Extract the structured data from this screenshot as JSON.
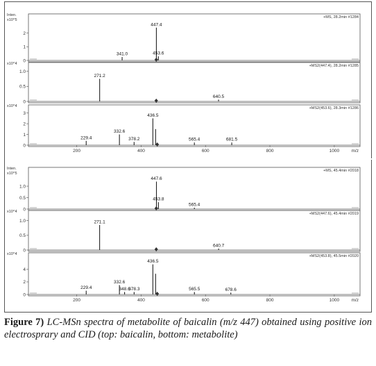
{
  "chart_data": [
    {
      "type": "bar",
      "group": "top",
      "axis_units_label": "Inten.",
      "scale_label": "x10^5",
      "header": "+MS, 28.2min #1284",
      "ylim": [
        0,
        3.2
      ],
      "yticks": [
        0,
        1,
        2
      ],
      "peaks": [
        {
          "x": 341.0,
          "y": 0.25,
          "label": "341.0"
        },
        {
          "x": 447.4,
          "y": 2.4,
          "label": "447.4"
        },
        {
          "x": 453.6,
          "y": 0.3,
          "label": "453.6"
        }
      ],
      "precursor_marker": 447
    },
    {
      "type": "bar",
      "group": "top",
      "scale_label": "x10^4",
      "header": "+MS2(447.4), 28.2min #1285",
      "ylim": [
        0,
        1.2
      ],
      "yticks": [
        0.0,
        0.5,
        1.0
      ],
      "ytick_labels": [
        "0",
        "0.5",
        "1.0"
      ],
      "peaks": [
        {
          "x": 271.2,
          "y": 0.75,
          "label": "271.2"
        },
        {
          "x": 640.5,
          "y": 0.06,
          "label": "640.5"
        }
      ],
      "precursor_marker": 447
    },
    {
      "type": "bar",
      "group": "top",
      "scale_label": "x10^4",
      "header": "+MS2(453.6), 28.3min #1286",
      "ylim": [
        0,
        3.5
      ],
      "yticks": [
        0,
        1,
        2,
        3
      ],
      "peaks": [
        {
          "x": 229.4,
          "y": 0.4,
          "label": "229.4"
        },
        {
          "x": 332.6,
          "y": 1.0,
          "label": "332.6"
        },
        {
          "x": 378.2,
          "y": 0.3,
          "label": "378.2"
        },
        {
          "x": 436.5,
          "y": 2.5,
          "label": "436.5"
        },
        {
          "x": 445.0,
          "y": 1.5,
          "label": ""
        },
        {
          "x": 565.4,
          "y": 0.25,
          "label": "565.4"
        },
        {
          "x": 681.5,
          "y": 0.25,
          "label": "681.5"
        }
      ],
      "precursor_marker": 450
    },
    {
      "type": "bar",
      "group": "bottom",
      "axis_units_label": "Inten.",
      "scale_label": "x10^5",
      "header": "+MS, 45.4min #2018",
      "ylim": [
        0,
        1.7
      ],
      "yticks": [
        0,
        0.5,
        1.0
      ],
      "ytick_labels": [
        "0",
        "0.5",
        "1.0"
      ],
      "peaks": [
        {
          "x": 447.6,
          "y": 1.2,
          "label": "447.6"
        },
        {
          "x": 453.8,
          "y": 0.3,
          "label": "453.8"
        },
        {
          "x": 565.4,
          "y": 0.06,
          "label": "565.4"
        }
      ],
      "precursor_marker": 447
    },
    {
      "type": "bar",
      "group": "bottom",
      "scale_label": "x10^4",
      "header": "+MS2(447.6), 45.4min #2019",
      "ylim": [
        0,
        1.25
      ],
      "yticks": [
        0.0,
        0.5,
        1.0
      ],
      "ytick_labels": [
        "0",
        "0.5",
        "1.0"
      ],
      "peaks": [
        {
          "x": 271.1,
          "y": 0.85,
          "label": "271.1"
        },
        {
          "x": 640.7,
          "y": 0.05,
          "label": "640.7"
        }
      ],
      "precursor_marker": 447
    },
    {
      "type": "bar",
      "group": "bottom",
      "scale_label": "x10^4",
      "header": "+MS2(453.8), 45.5min #2020",
      "ylim": [
        0,
        6.2
      ],
      "yticks": [
        0,
        2,
        4
      ],
      "peaks": [
        {
          "x": 229.4,
          "y": 0.6,
          "label": "229.4"
        },
        {
          "x": 332.6,
          "y": 1.5,
          "label": "332.6"
        },
        {
          "x": 348.6,
          "y": 0.4,
          "label": "348.6"
        },
        {
          "x": 378.3,
          "y": 0.4,
          "label": "378.3"
        },
        {
          "x": 436.5,
          "y": 4.8,
          "label": "436.5"
        },
        {
          "x": 445.0,
          "y": 3.3,
          "label": ""
        },
        {
          "x": 565.5,
          "y": 0.4,
          "label": "565.5"
        },
        {
          "x": 678.6,
          "y": 0.3,
          "label": "678.6"
        }
      ],
      "precursor_marker": 450
    }
  ],
  "x_axis": {
    "xlim": [
      50,
      1080
    ],
    "ticks": [
      200,
      400,
      600,
      800,
      1000
    ],
    "unit_label": "m/z"
  },
  "caption": {
    "label": "Figure 7)",
    "text": " LC-MSn spectra of metabolite of baicalin (m/z 447) obtained using positive ion electrosprary and CID (top: baicalin, bottom: metabolite)"
  },
  "colors": {
    "frame": "#555555",
    "peak": "#222222",
    "marker": "#333333",
    "grid_tick": "#666666"
  }
}
